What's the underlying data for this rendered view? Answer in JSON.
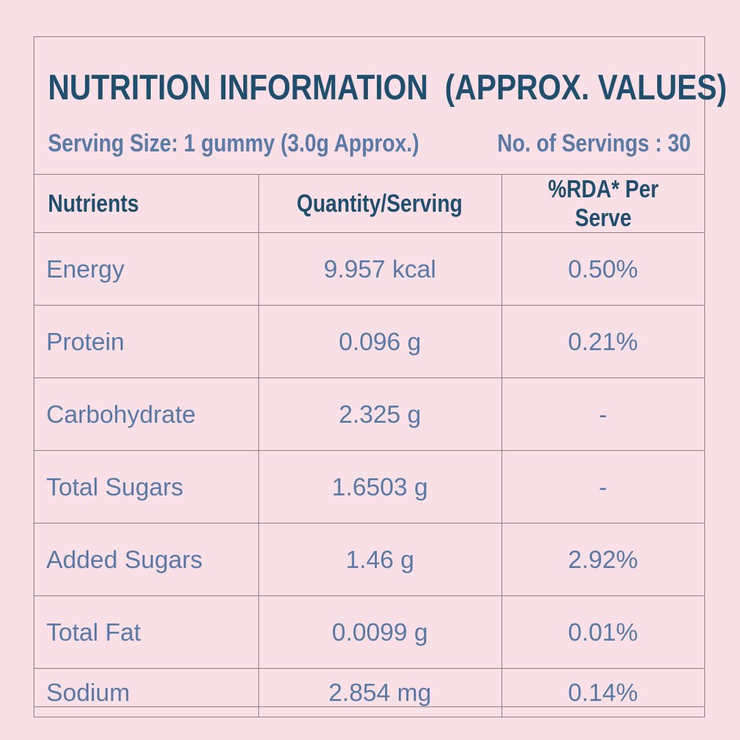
{
  "header": {
    "title": "NUTRITION INFORMATION  (APPROX. VALUES)",
    "serving_size": "Serving Size: 1 gummy (3.0g Approx.)",
    "servings": "No. of Servings : 30"
  },
  "table": {
    "columns": [
      "Nutrients",
      "Quantity/Serving",
      "%RDA* Per Serve"
    ],
    "rows": [
      [
        "Energy",
        "9.957 kcal",
        "0.50%"
      ],
      [
        "Protein",
        "0.096 g",
        "0.21%"
      ],
      [
        "Carbohydrate",
        "2.325 g",
        "-"
      ],
      [
        "Total Sugars",
        "1.6503 g",
        "-"
      ],
      [
        "Added Sugars",
        "1.46 g",
        "2.92%"
      ],
      [
        "Total Fat",
        "0.0099 g",
        "0.01%"
      ],
      [
        "Sodium",
        "2.854 mg",
        "0.14%"
      ]
    ]
  }
}
